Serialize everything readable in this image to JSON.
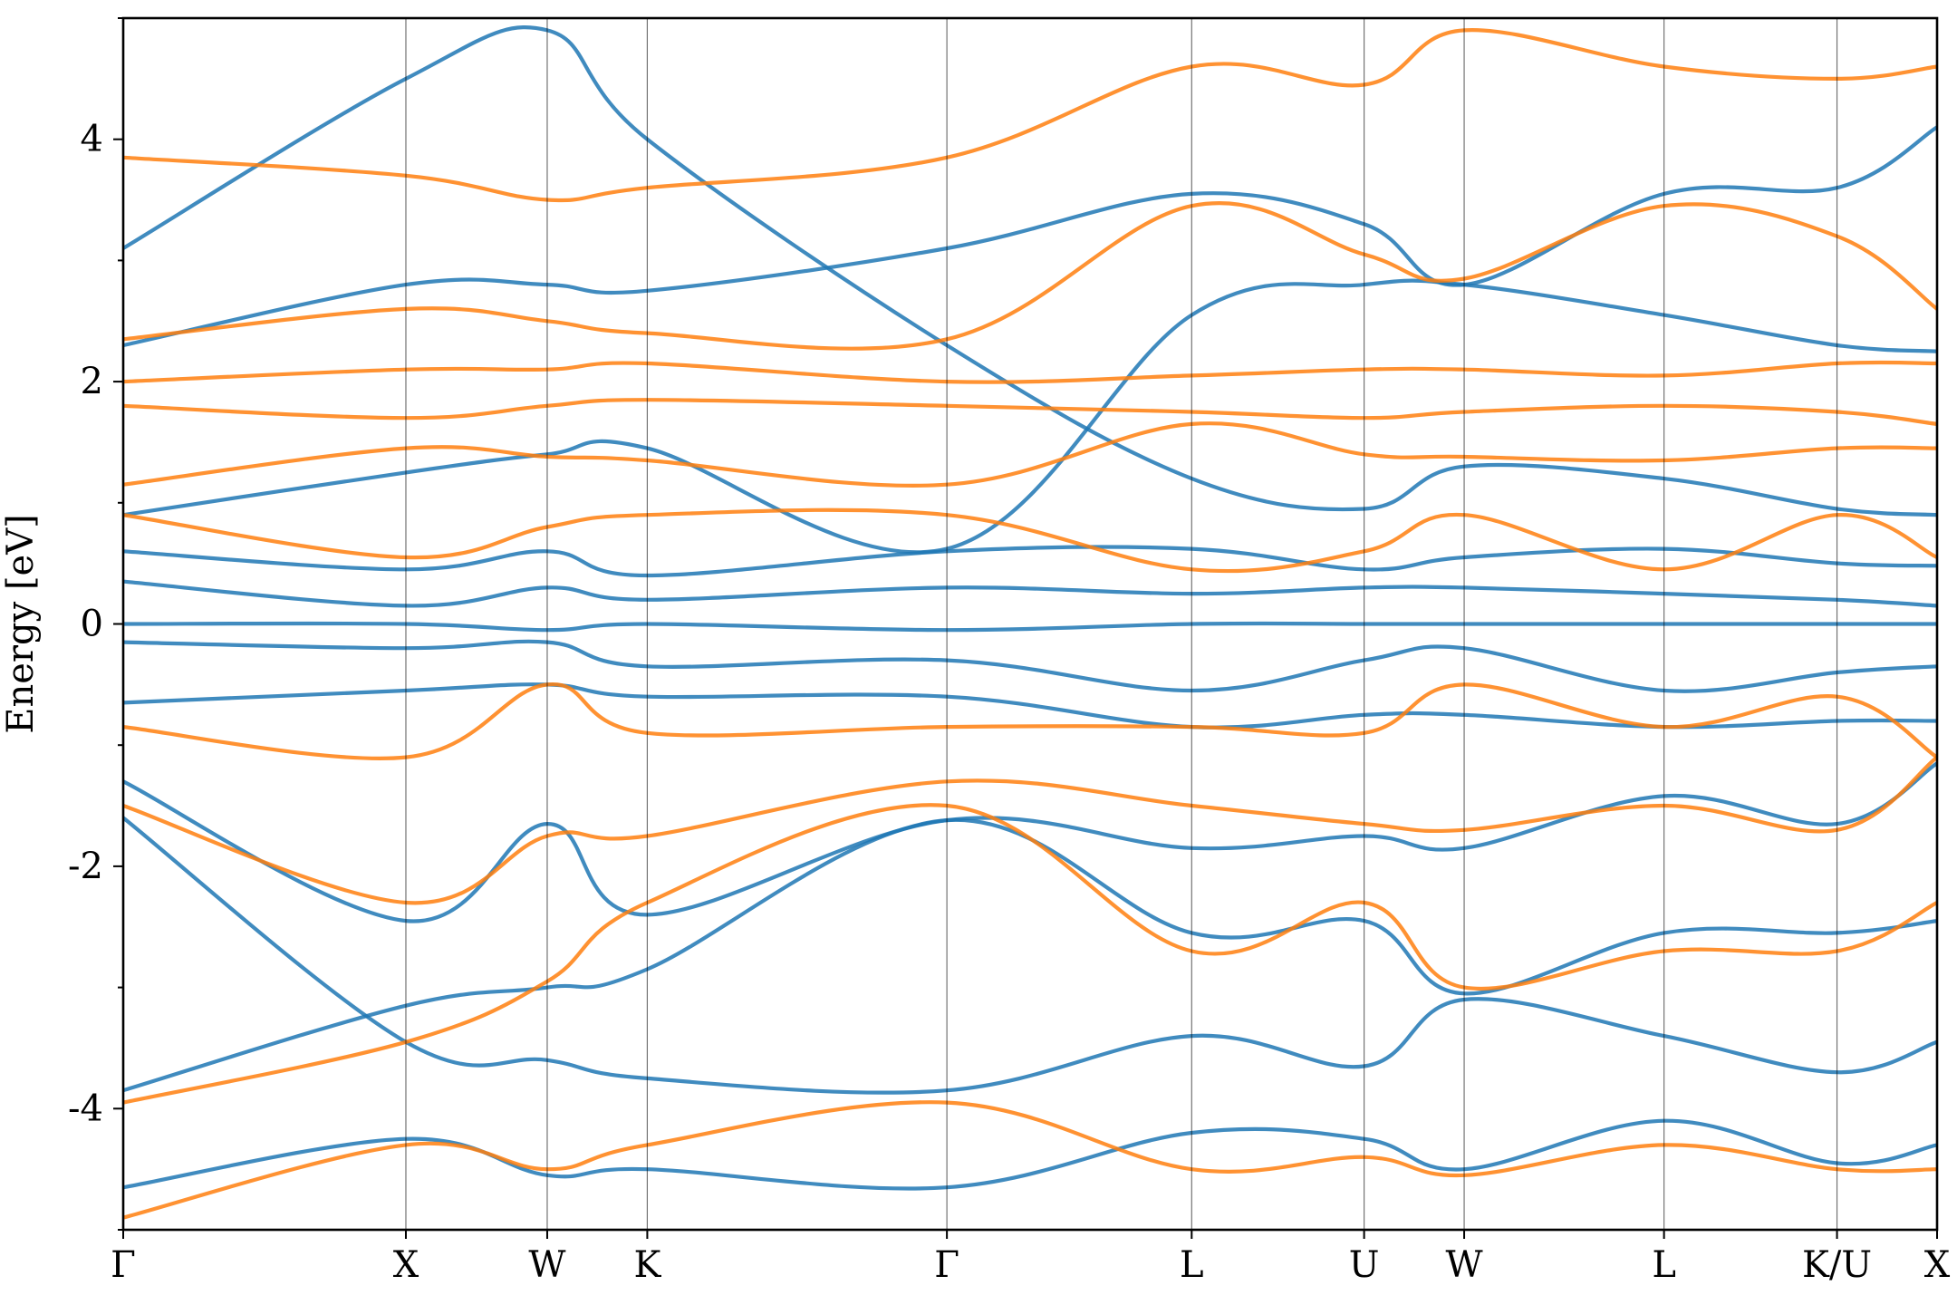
{
  "chart_data": {
    "type": "line",
    "title": "",
    "xlabel": "",
    "ylabel": "Energy [eV]",
    "ylim": [
      -5,
      5
    ],
    "yticks": [
      -4,
      -2,
      0,
      2,
      4
    ],
    "y_minor_step": 1,
    "grid": false,
    "legend": "none",
    "kpoints": [
      {
        "label": "Γ",
        "pos": 0.0
      },
      {
        "label": "X",
        "pos": 1.0
      },
      {
        "label": "W",
        "pos": 1.5
      },
      {
        "label": "K",
        "pos": 1.854
      },
      {
        "label": "Γ",
        "pos": 2.914
      },
      {
        "label": "L",
        "pos": 3.78
      },
      {
        "label": "U",
        "pos": 4.39
      },
      {
        "label": "W",
        "pos": 4.744
      },
      {
        "label": "L",
        "pos": 5.451
      },
      {
        "label": "K/U",
        "pos": 6.063
      },
      {
        "label": "X",
        "pos": 6.417
      }
    ],
    "colors": {
      "spin_up": "#1f77b4",
      "spin_down": "#ff7f0e"
    },
    "series": [
      {
        "spin": "up",
        "x": [
          0,
          1,
          1.5,
          1.854,
          2.914,
          3.78,
          4.39,
          4.744,
          5.451,
          6.063,
          6.417
        ],
        "y": [
          -3.85,
          -3.15,
          -3.0,
          -2.85,
          -1.62,
          -2.55,
          -2.45,
          -3.05,
          -2.55,
          -2.55,
          -2.45
        ]
      },
      {
        "spin": "up",
        "x": [
          0,
          1,
          1.5,
          1.854,
          2.914,
          3.78,
          4.39,
          4.744,
          5.451,
          6.063,
          6.417
        ],
        "y": [
          -1.3,
          -2.45,
          -1.65,
          -2.4,
          -1.62,
          -1.85,
          -1.75,
          -1.85,
          -1.42,
          -1.65,
          -1.15
        ]
      },
      {
        "spin": "up",
        "x": [
          0,
          1,
          1.5,
          1.854,
          2.914,
          3.78,
          4.39,
          4.744,
          5.451,
          6.063,
          6.417
        ],
        "y": [
          -1.6,
          -3.45,
          -3.6,
          -3.75,
          -3.85,
          -3.4,
          -3.65,
          -3.1,
          -3.4,
          -3.7,
          -3.45
        ]
      },
      {
        "spin": "up",
        "x": [
          0,
          1,
          1.5,
          1.854,
          2.914,
          3.78,
          4.39,
          4.744,
          5.451,
          6.063,
          6.417
        ],
        "y": [
          -4.65,
          -4.25,
          -4.55,
          -4.5,
          -4.65,
          -4.2,
          -4.25,
          -4.5,
          -4.1,
          -4.45,
          -4.3
        ]
      },
      {
        "spin": "up",
        "x": [
          0,
          1,
          1.5,
          1.854,
          2.914,
          3.78,
          4.39,
          4.744,
          5.451,
          6.063,
          6.417
        ],
        "y": [
          -0.65,
          -0.55,
          -0.5,
          -0.6,
          -0.6,
          -0.85,
          -0.75,
          -0.75,
          -0.85,
          -0.8,
          -0.8
        ]
      },
      {
        "spin": "up",
        "x": [
          0,
          1,
          1.5,
          1.854,
          2.914,
          3.78,
          4.39,
          4.744,
          5.451,
          6.063,
          6.417
        ],
        "y": [
          -0.15,
          -0.2,
          -0.15,
          -0.35,
          -0.3,
          -0.55,
          -0.3,
          -0.2,
          -0.55,
          -0.4,
          -0.35
        ]
      },
      {
        "spin": "up",
        "x": [
          0,
          1,
          1.5,
          1.854,
          2.914,
          3.78,
          4.39,
          4.744,
          5.451,
          6.063,
          6.417
        ],
        "y": [
          0.0,
          0.0,
          -0.05,
          0.0,
          -0.05,
          0.0,
          0.0,
          0.0,
          0.0,
          0.0,
          0.0
        ]
      },
      {
        "spin": "up",
        "x": [
          0,
          1,
          1.5,
          1.854,
          2.914,
          3.78,
          4.39,
          4.744,
          5.451,
          6.063,
          6.417
        ],
        "y": [
          0.35,
          0.15,
          0.3,
          0.2,
          0.3,
          0.25,
          0.3,
          0.3,
          0.25,
          0.2,
          0.15
        ]
      },
      {
        "spin": "up",
        "x": [
          0,
          1,
          1.5,
          1.854,
          2.914,
          3.78,
          4.39,
          4.744,
          5.451,
          6.063,
          6.417
        ],
        "y": [
          0.6,
          0.45,
          0.6,
          0.4,
          0.6,
          0.62,
          0.45,
          0.55,
          0.62,
          0.5,
          0.48
        ]
      },
      {
        "spin": "up",
        "x": [
          0,
          1,
          1.5,
          1.854,
          2.914,
          3.78,
          4.39,
          4.744,
          5.451,
          6.063,
          6.417
        ],
        "y": [
          0.9,
          1.25,
          1.4,
          1.45,
          0.62,
          2.55,
          2.8,
          2.8,
          2.55,
          2.3,
          2.25
        ]
      },
      {
        "spin": "up",
        "x": [
          0,
          1,
          1.5,
          1.854,
          2.914,
          3.78,
          4.39,
          4.744,
          5.451,
          6.063,
          6.417
        ],
        "y": [
          2.3,
          2.8,
          2.8,
          2.75,
          3.1,
          3.55,
          3.3,
          2.8,
          3.55,
          3.6,
          4.1
        ]
      },
      {
        "spin": "up",
        "x": [
          0,
          1,
          1.5,
          1.854,
          2.914,
          3.78,
          4.39,
          4.744,
          5.451,
          6.063,
          6.417
        ],
        "y": [
          3.1,
          4.5,
          4.9,
          4.0,
          2.3,
          1.2,
          0.95,
          1.3,
          1.2,
          0.95,
          0.9
        ]
      }
    ],
    "series_down": [
      {
        "spin": "down",
        "x": [
          0,
          1,
          1.5,
          1.854,
          2.914,
          3.78,
          4.39,
          4.744,
          5.451,
          6.063,
          6.417
        ],
        "y": [
          -3.95,
          -3.45,
          -2.95,
          -2.3,
          -1.5,
          -2.7,
          -2.3,
          -3.0,
          -2.7,
          -2.7,
          -2.3
        ]
      },
      {
        "spin": "down",
        "x": [
          0,
          1,
          1.5,
          1.854,
          2.914,
          3.78,
          4.39,
          4.744,
          5.451,
          6.063,
          6.417
        ],
        "y": [
          -1.5,
          -2.3,
          -1.75,
          -1.75,
          -1.3,
          -1.5,
          -1.65,
          -1.7,
          -1.5,
          -1.7,
          -1.1
        ]
      },
      {
        "spin": "down",
        "x": [
          0,
          1,
          1.5,
          1.854,
          2.914,
          3.78,
          4.39,
          4.744,
          5.451,
          6.063,
          6.417
        ],
        "y": [
          -4.9,
          -4.3,
          -4.5,
          -4.3,
          -3.95,
          -4.5,
          -4.4,
          -4.55,
          -4.3,
          -4.5,
          -4.5
        ]
      },
      {
        "spin": "down",
        "x": [
          0,
          1,
          1.5,
          1.854,
          2.914,
          3.78,
          4.39,
          4.744,
          5.451,
          6.063,
          6.417
        ],
        "y": [
          -0.85,
          -1.1,
          -0.5,
          -0.9,
          -0.85,
          -0.85,
          -0.9,
          -0.5,
          -0.85,
          -0.6,
          -1.1
        ]
      },
      {
        "spin": "down",
        "x": [
          0,
          1,
          1.5,
          1.854,
          2.914,
          3.78,
          4.39,
          4.744,
          5.451,
          6.063,
          6.417
        ],
        "y": [
          0.9,
          0.55,
          0.8,
          0.9,
          0.9,
          0.45,
          0.6,
          0.9,
          0.45,
          0.9,
          0.55
        ]
      },
      {
        "spin": "down",
        "x": [
          0,
          1,
          1.5,
          1.854,
          2.914,
          3.78,
          4.39,
          4.744,
          5.451,
          6.063,
          6.417
        ],
        "y": [
          1.15,
          1.45,
          1.38,
          1.35,
          1.15,
          1.65,
          1.4,
          1.38,
          1.35,
          1.45,
          1.45
        ]
      },
      {
        "spin": "down",
        "x": [
          0,
          1,
          1.5,
          1.854,
          2.914,
          3.78,
          4.39,
          4.744,
          5.451,
          6.063,
          6.417
        ],
        "y": [
          1.8,
          1.7,
          1.8,
          1.85,
          1.8,
          1.75,
          1.7,
          1.75,
          1.8,
          1.75,
          1.65
        ]
      },
      {
        "spin": "down",
        "x": [
          0,
          1,
          1.5,
          1.854,
          2.914,
          3.78,
          4.39,
          4.744,
          5.451,
          6.063,
          6.417
        ],
        "y": [
          2.0,
          2.1,
          2.1,
          2.15,
          2.0,
          2.05,
          2.1,
          2.1,
          2.05,
          2.15,
          2.15
        ]
      },
      {
        "spin": "down",
        "x": [
          0,
          1,
          1.5,
          1.854,
          2.914,
          3.78,
          4.39,
          4.744,
          5.451,
          6.063,
          6.417
        ],
        "y": [
          2.35,
          2.6,
          2.5,
          2.4,
          2.35,
          3.45,
          3.05,
          2.85,
          3.45,
          3.2,
          2.6
        ]
      },
      {
        "spin": "down",
        "x": [
          0,
          1,
          1.5,
          1.854,
          2.914,
          3.78,
          4.39,
          4.744,
          5.451,
          6.063,
          6.417
        ],
        "y": [
          3.85,
          3.7,
          3.5,
          3.6,
          3.85,
          4.6,
          4.45,
          4.9,
          4.6,
          4.5,
          4.6
        ]
      }
    ]
  }
}
